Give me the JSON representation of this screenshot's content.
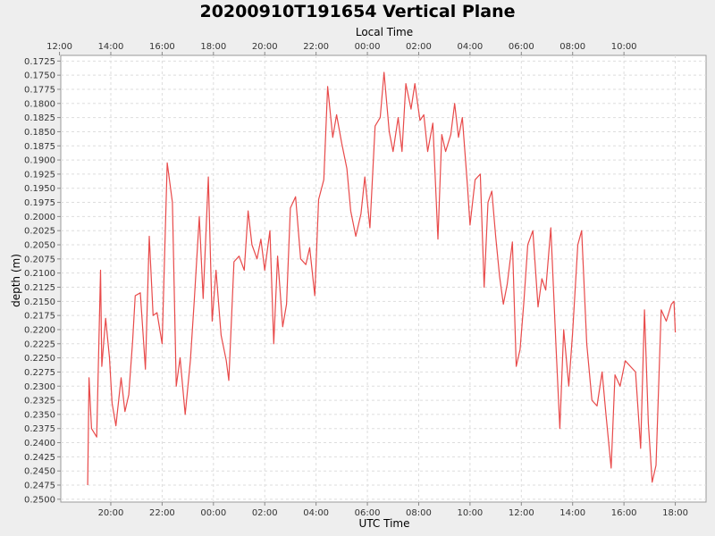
{
  "chart_data": {
    "type": "line",
    "title": "20200910T191654 Vertical Plane",
    "xlabel": "UTC Time",
    "x2label": "Local Time",
    "ylabel": "depth (m)",
    "y_inverted": true,
    "ylim": [
      0.1715,
      0.2505
    ],
    "y_ticks": [
      "0.1725",
      "0.1750",
      "0.1775",
      "0.1800",
      "0.1825",
      "0.1850",
      "0.1875",
      "0.1900",
      "0.1925",
      "0.1950",
      "0.1975",
      "0.2000",
      "0.2025",
      "0.2050",
      "0.2075",
      "0.2100",
      "0.2125",
      "0.2150",
      "0.2175",
      "0.2200",
      "0.2225",
      "0.2250",
      "0.2275",
      "0.2300",
      "0.2325",
      "0.2350",
      "0.2375",
      "0.2400",
      "0.2425",
      "0.2450",
      "0.2475",
      "0.2500"
    ],
    "x_utc_ticks": [
      {
        "label": "20:00",
        "t": 20
      },
      {
        "label": "22:00",
        "t": 22
      },
      {
        "label": "00:00",
        "t": 24
      },
      {
        "label": "02:00",
        "t": 26
      },
      {
        "label": "04:00",
        "t": 28
      },
      {
        "label": "06:00",
        "t": 30
      },
      {
        "label": "08:00",
        "t": 32
      },
      {
        "label": "10:00",
        "t": 34
      },
      {
        "label": "12:00",
        "t": 36
      },
      {
        "label": "14:00",
        "t": 38
      },
      {
        "label": "16:00",
        "t": 40
      },
      {
        "label": "18:00",
        "t": 42
      }
    ],
    "x_local_ticks": [
      {
        "label": "12:00",
        "t": 18
      },
      {
        "label": "14:00",
        "t": 20
      },
      {
        "label": "16:00",
        "t": 22
      },
      {
        "label": "18:00",
        "t": 24
      },
      {
        "label": "20:00",
        "t": 26
      },
      {
        "label": "22:00",
        "t": 28
      },
      {
        "label": "00:00",
        "t": 30
      },
      {
        "label": "02:00",
        "t": 32
      },
      {
        "label": "04:00",
        "t": 34
      },
      {
        "label": "06:00",
        "t": 36
      },
      {
        "label": "08:00",
        "t": 38
      },
      {
        "label": "10:00",
        "t": 40
      }
    ],
    "xlim": [
      18.05,
      43.2
    ],
    "x_unit": "hours UTC from 2020-09-10 00:00",
    "line_color": "#e84a4a",
    "series": [
      {
        "points": [
          [
            19.1,
            0.2475
          ],
          [
            19.15,
            0.2285
          ],
          [
            19.25,
            0.2375
          ],
          [
            19.45,
            0.239
          ],
          [
            19.6,
            0.2095
          ],
          [
            19.65,
            0.2265
          ],
          [
            19.8,
            0.218
          ],
          [
            19.95,
            0.225
          ],
          [
            20.05,
            0.233
          ],
          [
            20.2,
            0.237
          ],
          [
            20.4,
            0.2285
          ],
          [
            20.55,
            0.2345
          ],
          [
            20.7,
            0.2315
          ],
          [
            20.85,
            0.222
          ],
          [
            20.95,
            0.214
          ],
          [
            21.15,
            0.2135
          ],
          [
            21.35,
            0.227
          ],
          [
            21.5,
            0.2035
          ],
          [
            21.65,
            0.2175
          ],
          [
            21.8,
            0.217
          ],
          [
            22.0,
            0.2225
          ],
          [
            22.2,
            0.1905
          ],
          [
            22.4,
            0.1975
          ],
          [
            22.55,
            0.23
          ],
          [
            22.7,
            0.225
          ],
          [
            22.9,
            0.235
          ],
          [
            23.1,
            0.2255
          ],
          [
            23.25,
            0.215
          ],
          [
            23.45,
            0.2
          ],
          [
            23.6,
            0.2145
          ],
          [
            23.8,
            0.193
          ],
          [
            23.95,
            0.2185
          ],
          [
            24.1,
            0.2095
          ],
          [
            24.3,
            0.221
          ],
          [
            24.5,
            0.2255
          ],
          [
            24.6,
            0.229
          ],
          [
            24.8,
            0.208
          ],
          [
            25.0,
            0.207
          ],
          [
            25.2,
            0.2095
          ],
          [
            25.35,
            0.199
          ],
          [
            25.5,
            0.205
          ],
          [
            25.7,
            0.2075
          ],
          [
            25.85,
            0.204
          ],
          [
            26.0,
            0.2095
          ],
          [
            26.2,
            0.2025
          ],
          [
            26.35,
            0.2225
          ],
          [
            26.5,
            0.207
          ],
          [
            26.7,
            0.2195
          ],
          [
            26.85,
            0.2155
          ],
          [
            27.0,
            0.1985
          ],
          [
            27.2,
            0.1965
          ],
          [
            27.4,
            0.2075
          ],
          [
            27.6,
            0.2085
          ],
          [
            27.75,
            0.2055
          ],
          [
            27.95,
            0.214
          ],
          [
            28.1,
            0.197
          ],
          [
            28.3,
            0.1935
          ],
          [
            28.45,
            0.177
          ],
          [
            28.65,
            0.186
          ],
          [
            28.8,
            0.182
          ],
          [
            29.0,
            0.187
          ],
          [
            29.2,
            0.1915
          ],
          [
            29.35,
            0.199
          ],
          [
            29.55,
            0.2035
          ],
          [
            29.75,
            0.1995
          ],
          [
            29.9,
            0.193
          ],
          [
            30.1,
            0.202
          ],
          [
            30.3,
            0.184
          ],
          [
            30.5,
            0.1825
          ],
          [
            30.65,
            0.1745
          ],
          [
            30.85,
            0.185
          ],
          [
            31.0,
            0.1885
          ],
          [
            31.2,
            0.1825
          ],
          [
            31.35,
            0.1885
          ],
          [
            31.5,
            0.1765
          ],
          [
            31.7,
            0.181
          ],
          [
            31.85,
            0.1765
          ],
          [
            32.05,
            0.183
          ],
          [
            32.2,
            0.182
          ],
          [
            32.35,
            0.1885
          ],
          [
            32.55,
            0.1835
          ],
          [
            32.75,
            0.204
          ],
          [
            32.9,
            0.1855
          ],
          [
            33.05,
            0.1885
          ],
          [
            33.25,
            0.1855
          ],
          [
            33.4,
            0.18
          ],
          [
            33.55,
            0.186
          ],
          [
            33.7,
            0.1825
          ],
          [
            33.9,
            0.1945
          ],
          [
            34.0,
            0.2015
          ],
          [
            34.2,
            0.1935
          ],
          [
            34.4,
            0.1925
          ],
          [
            34.55,
            0.2125
          ],
          [
            34.7,
            0.1975
          ],
          [
            34.85,
            0.1955
          ],
          [
            35.0,
            0.2035
          ],
          [
            35.15,
            0.2105
          ],
          [
            35.3,
            0.2155
          ],
          [
            35.45,
            0.212
          ],
          [
            35.65,
            0.2045
          ],
          [
            35.8,
            0.2265
          ],
          [
            35.95,
            0.2235
          ],
          [
            36.1,
            0.215
          ],
          [
            36.25,
            0.205
          ],
          [
            36.45,
            0.2025
          ],
          [
            36.65,
            0.216
          ],
          [
            36.8,
            0.211
          ],
          [
            36.95,
            0.213
          ],
          [
            37.15,
            0.202
          ],
          [
            37.35,
            0.223
          ],
          [
            37.5,
            0.2375
          ],
          [
            37.65,
            0.22
          ],
          [
            37.85,
            0.23
          ],
          [
            38.0,
            0.2205
          ],
          [
            38.2,
            0.205
          ],
          [
            38.35,
            0.2025
          ],
          [
            38.55,
            0.2225
          ],
          [
            38.75,
            0.2325
          ],
          [
            38.95,
            0.2335
          ],
          [
            39.15,
            0.2275
          ],
          [
            39.3,
            0.235
          ],
          [
            39.5,
            0.2445
          ],
          [
            39.65,
            0.228
          ],
          [
            39.85,
            0.23
          ],
          [
            40.05,
            0.2255
          ],
          [
            40.25,
            0.2265
          ],
          [
            40.45,
            0.2275
          ],
          [
            40.65,
            0.241
          ],
          [
            40.8,
            0.2165
          ],
          [
            40.95,
            0.2365
          ],
          [
            41.1,
            0.247
          ],
          [
            41.25,
            0.244
          ],
          [
            41.45,
            0.2165
          ],
          [
            41.65,
            0.2185
          ],
          [
            41.85,
            0.2155
          ],
          [
            41.95,
            0.215
          ],
          [
            42.0,
            0.2205
          ]
        ]
      }
    ]
  }
}
